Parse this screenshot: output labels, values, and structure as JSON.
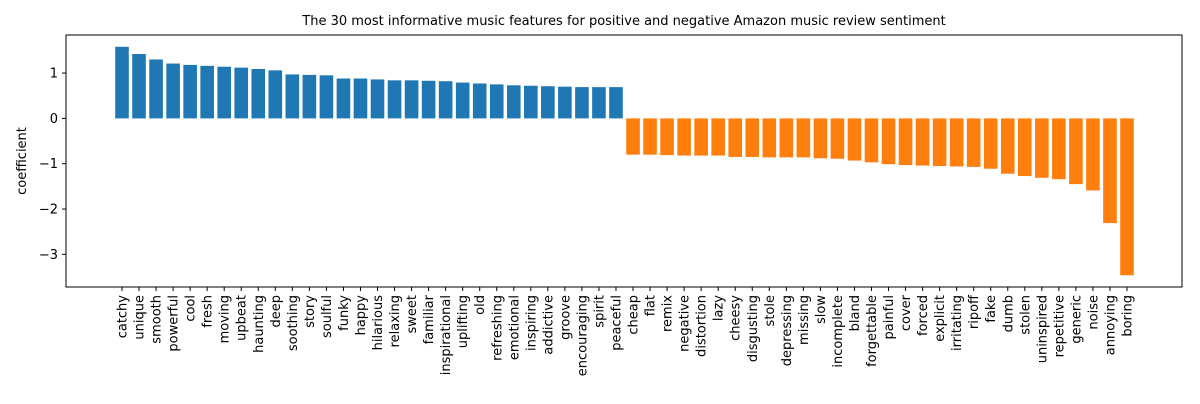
{
  "chart_data": {
    "type": "bar",
    "title": "The 30 most informative music features for positive and negative Amazon music review sentiment",
    "xlabel": "",
    "ylabel": "coefficient",
    "ylim": [
      -3.72,
      1.84
    ],
    "yticks": [
      1,
      0,
      -1,
      -2,
      -3
    ],
    "ytick_labels": [
      "1",
      "0",
      "−1",
      "−2",
      "−3"
    ],
    "grid": false,
    "legend": "none",
    "colors": {
      "positive": "#1f77b4",
      "negative": "#ff7f0e"
    },
    "categories": [
      "catchy",
      "unique",
      "smooth",
      "powerful",
      "cool",
      "fresh",
      "moving",
      "upbeat",
      "haunting",
      "deep",
      "soothing",
      "story",
      "soulful",
      "funky",
      "happy",
      "hilarious",
      "relaxing",
      "sweet",
      "familiar",
      "inspirational",
      "uplifting",
      "old",
      "refreshing",
      "emotional",
      "inspiring",
      "addictive",
      "groove",
      "encouraging",
      "spirit",
      "peaceful",
      "cheap",
      "flat",
      "remix",
      "negative",
      "distortion",
      "lazy",
      "cheesy",
      "disgusting",
      "stole",
      "depressing",
      "missing",
      "slow",
      "incomplete",
      "bland",
      "forgettable",
      "painful",
      "cover",
      "forced",
      "explicit",
      "irritating",
      "ripoff",
      "fake",
      "dumb",
      "stolen",
      "uninspired",
      "repetitive",
      "generic",
      "noise",
      "annoying",
      "boring"
    ],
    "values": [
      1.58,
      1.42,
      1.3,
      1.21,
      1.18,
      1.16,
      1.14,
      1.12,
      1.09,
      1.06,
      0.97,
      0.96,
      0.95,
      0.88,
      0.88,
      0.86,
      0.84,
      0.84,
      0.83,
      0.82,
      0.79,
      0.77,
      0.75,
      0.73,
      0.72,
      0.71,
      0.7,
      0.69,
      0.69,
      0.69,
      -0.8,
      -0.8,
      -0.81,
      -0.82,
      -0.82,
      -0.82,
      -0.85,
      -0.85,
      -0.86,
      -0.86,
      -0.86,
      -0.88,
      -0.89,
      -0.93,
      -0.97,
      -1.01,
      -1.03,
      -1.04,
      -1.05,
      -1.06,
      -1.07,
      -1.11,
      -1.22,
      -1.27,
      -1.31,
      -1.34,
      -1.45,
      -1.59,
      -2.31,
      -3.46
    ]
  }
}
